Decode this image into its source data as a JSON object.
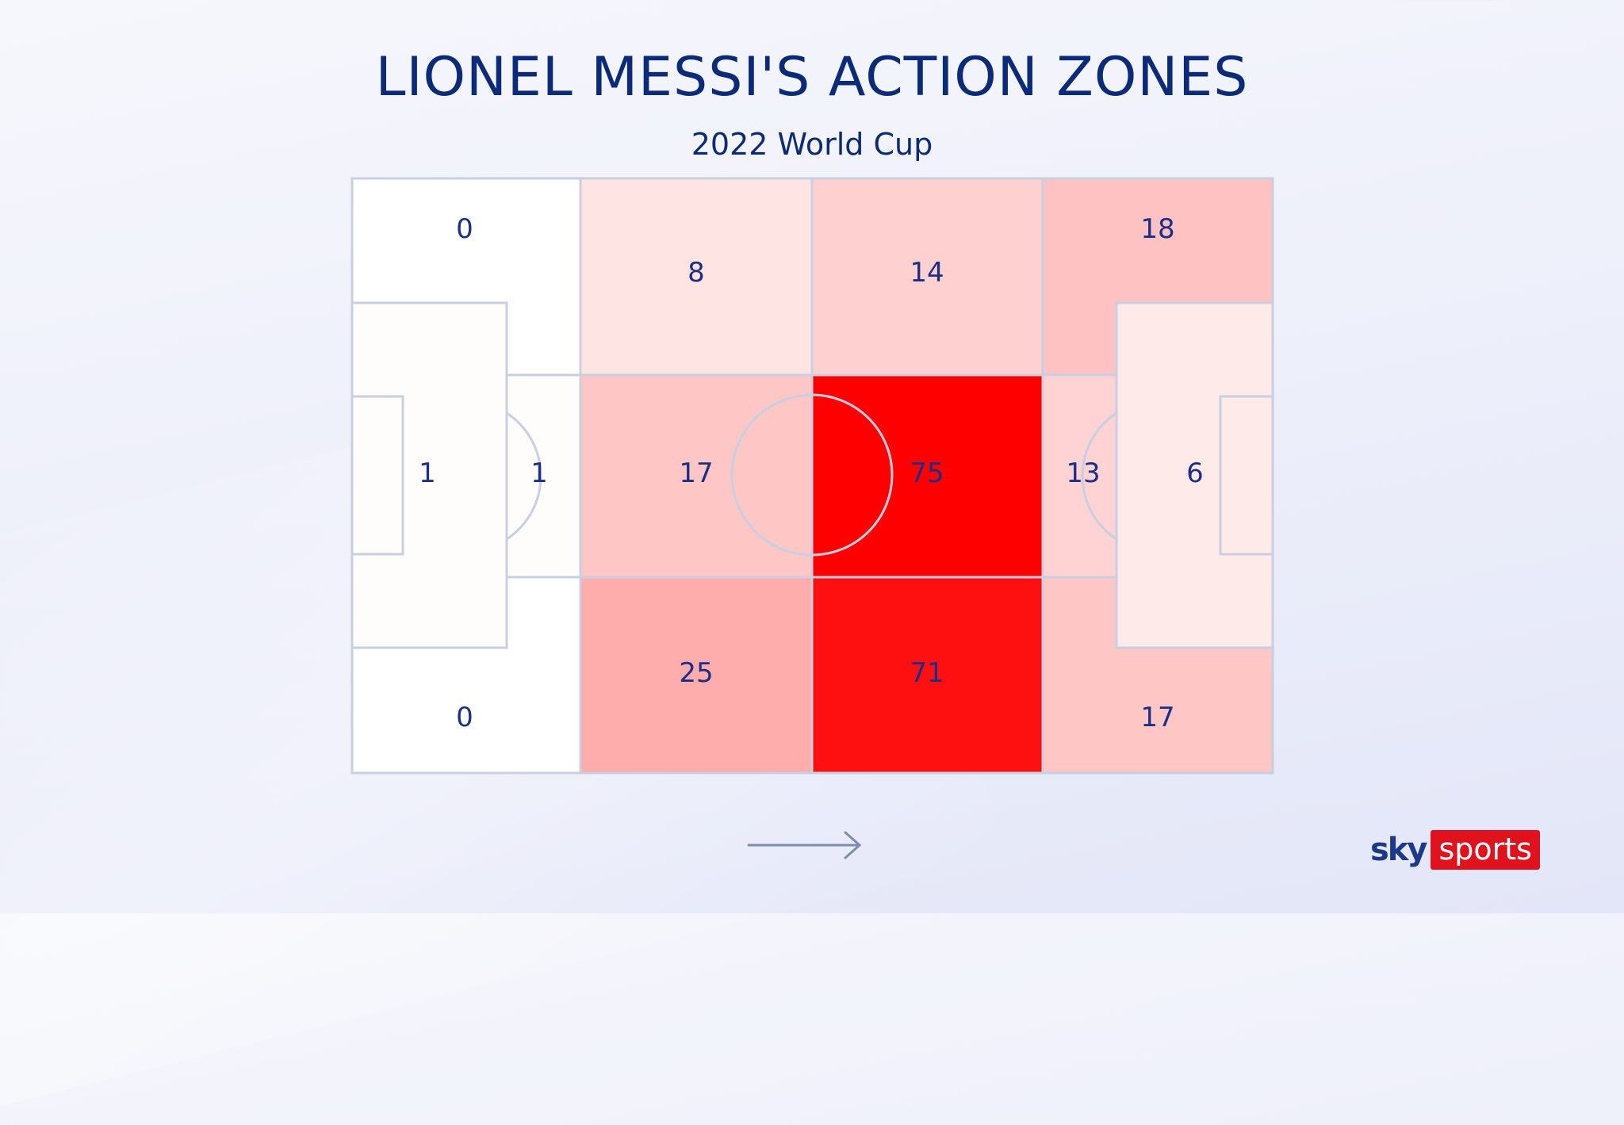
{
  "chart_data": {
    "type": "heatmap",
    "title": "LIONEL MESSI'S ACTION ZONES",
    "subtitle": "2022 World Cup",
    "direction_of_play": "left-to-right",
    "zones": [
      {
        "name": "defensive-third-left-wing",
        "value": 0,
        "color": "#ffffff"
      },
      {
        "name": "defensive-third-box",
        "value": 1,
        "color": "#fffdfc"
      },
      {
        "name": "defensive-third-box-edge",
        "value": 1,
        "color": "#fffdfc"
      },
      {
        "name": "defensive-third-right-wing",
        "value": 0,
        "color": "#ffffff"
      },
      {
        "name": "own-half-left-wing",
        "value": 8,
        "color": "#ffe4e4"
      },
      {
        "name": "own-half-centre",
        "value": 17,
        "color": "#ffc6c6"
      },
      {
        "name": "own-half-right-wing",
        "value": 25,
        "color": "#ffacac"
      },
      {
        "name": "opp-half-left-wing",
        "value": 14,
        "color": "#ffd0d0"
      },
      {
        "name": "opp-half-centre",
        "value": 75,
        "color": "#ff0000"
      },
      {
        "name": "opp-half-right-wing",
        "value": 71,
        "color": "#ff1010"
      },
      {
        "name": "final-third-left-wing",
        "value": 18,
        "color": "#ffc2c2"
      },
      {
        "name": "final-third-box-edge",
        "value": 13,
        "color": "#ffd3d3"
      },
      {
        "name": "final-third-box",
        "value": 6,
        "color": "#ffeaea"
      },
      {
        "name": "final-third-right-wing",
        "value": 17,
        "color": "#ffc6c6"
      }
    ]
  },
  "brand": {
    "sky": "sky",
    "sports": "sports",
    "red": "#e0121e"
  },
  "colors": {
    "pitch_lines": "#c8cfe0",
    "text": "#1d2e86",
    "arrow": "#7f8cb0"
  }
}
